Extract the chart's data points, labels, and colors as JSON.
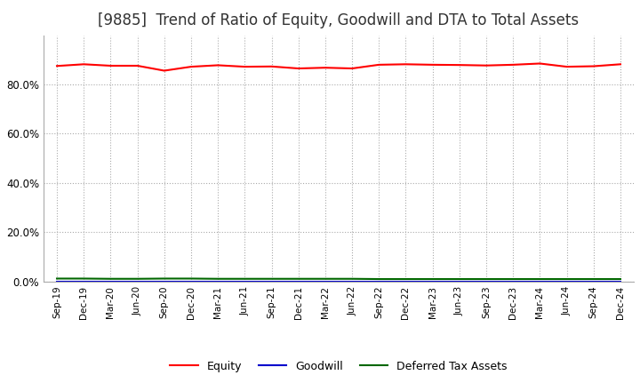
{
  "title": "[9885]  Trend of Ratio of Equity, Goodwill and DTA to Total Assets",
  "title_fontsize": 12,
  "background_color": "#ffffff",
  "grid_color": "#aaaaaa",
  "x_labels": [
    "Sep-19",
    "Dec-19",
    "Mar-20",
    "Jun-20",
    "Sep-20",
    "Dec-20",
    "Mar-21",
    "Jun-21",
    "Sep-21",
    "Dec-21",
    "Mar-22",
    "Jun-22",
    "Sep-22",
    "Dec-22",
    "Mar-23",
    "Jun-23",
    "Sep-23",
    "Dec-23",
    "Mar-24",
    "Jun-24",
    "Sep-24",
    "Dec-24"
  ],
  "equity": [
    0.875,
    0.882,
    0.876,
    0.876,
    0.856,
    0.872,
    0.878,
    0.872,
    0.873,
    0.865,
    0.868,
    0.865,
    0.88,
    0.882,
    0.88,
    0.879,
    0.877,
    0.88,
    0.885,
    0.872,
    0.874,
    0.882
  ],
  "goodwill": [
    0.0,
    0.0,
    0.0,
    0.0,
    0.0,
    0.0,
    0.0,
    0.0,
    0.0,
    0.0,
    0.0,
    0.0,
    0.0,
    0.0,
    0.0,
    0.0,
    0.0,
    0.0,
    0.0,
    0.0,
    0.0,
    0.0
  ],
  "dta": [
    0.012,
    0.012,
    0.011,
    0.011,
    0.012,
    0.012,
    0.011,
    0.011,
    0.011,
    0.011,
    0.011,
    0.011,
    0.01,
    0.01,
    0.01,
    0.01,
    0.01,
    0.01,
    0.01,
    0.01,
    0.01,
    0.01
  ],
  "equity_color": "#ff0000",
  "goodwill_color": "#0000cc",
  "dta_color": "#006600",
  "ylim": [
    0.0,
    1.0
  ],
  "yticks": [
    0.0,
    0.2,
    0.4,
    0.6,
    0.8
  ],
  "legend_labels": [
    "Equity",
    "Goodwill",
    "Deferred Tax Assets"
  ]
}
